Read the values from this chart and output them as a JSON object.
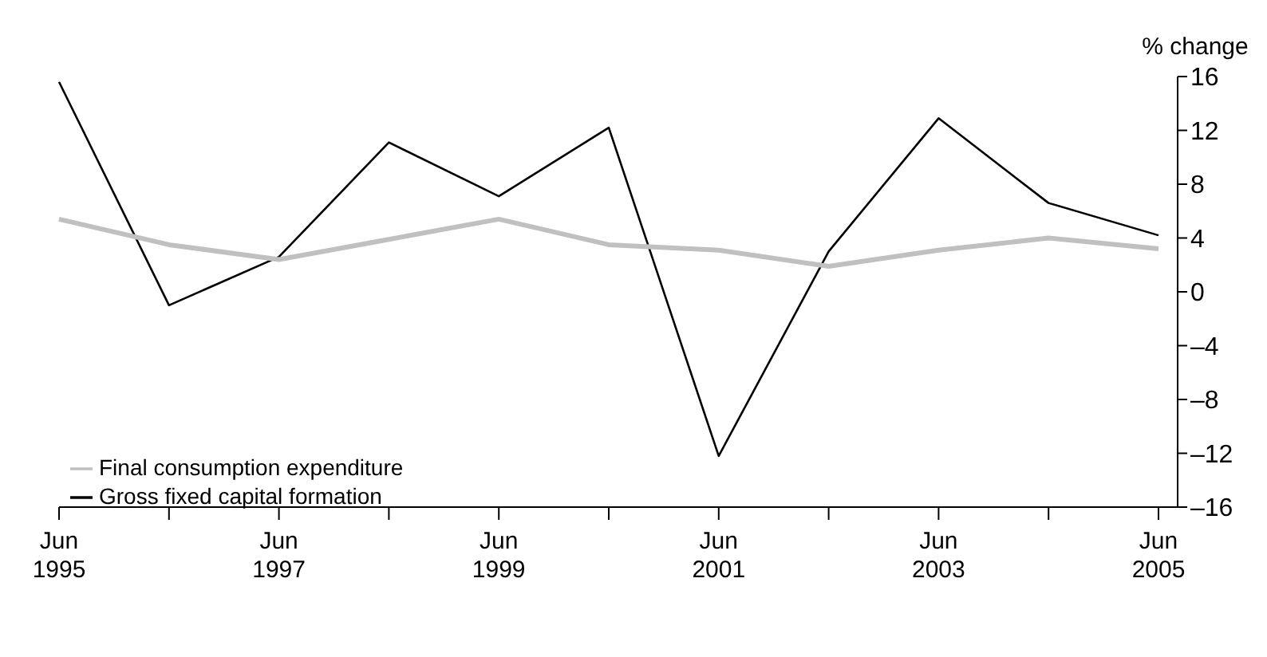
{
  "chart_data": {
    "type": "line",
    "ylabel": "% change",
    "categories": [
      "Jun 1995",
      null,
      "Jun 1997",
      null,
      "Jun 1999",
      null,
      "Jun 2001",
      null,
      "Jun 2003",
      null,
      "Jun 2005"
    ],
    "series": [
      {
        "name": "Gross fixed capital formation",
        "color": "#000000",
        "values": [
          15.6,
          -1.0,
          2.6,
          11.1,
          7.1,
          12.2,
          -12.2,
          3.0,
          12.9,
          6.6,
          4.2
        ]
      },
      {
        "name": "Final consumption expenditure",
        "color": "#c0c0c0",
        "values": [
          5.4,
          3.5,
          2.4,
          3.9,
          5.4,
          3.5,
          3.1,
          1.9,
          3.1,
          4.0,
          3.2
        ]
      }
    ],
    "ylim": [
      -16,
      16
    ],
    "yticks": [
      {
        "value": -16,
        "label": "–16"
      },
      {
        "value": -12,
        "label": "–12"
      },
      {
        "value": -8,
        "label": "–8"
      },
      {
        "value": -4,
        "label": "–4"
      },
      0,
      4,
      8,
      12,
      16
    ],
    "grid": false,
    "legend": "bottom left",
    "marker": "none",
    "line_style": "solid"
  }
}
